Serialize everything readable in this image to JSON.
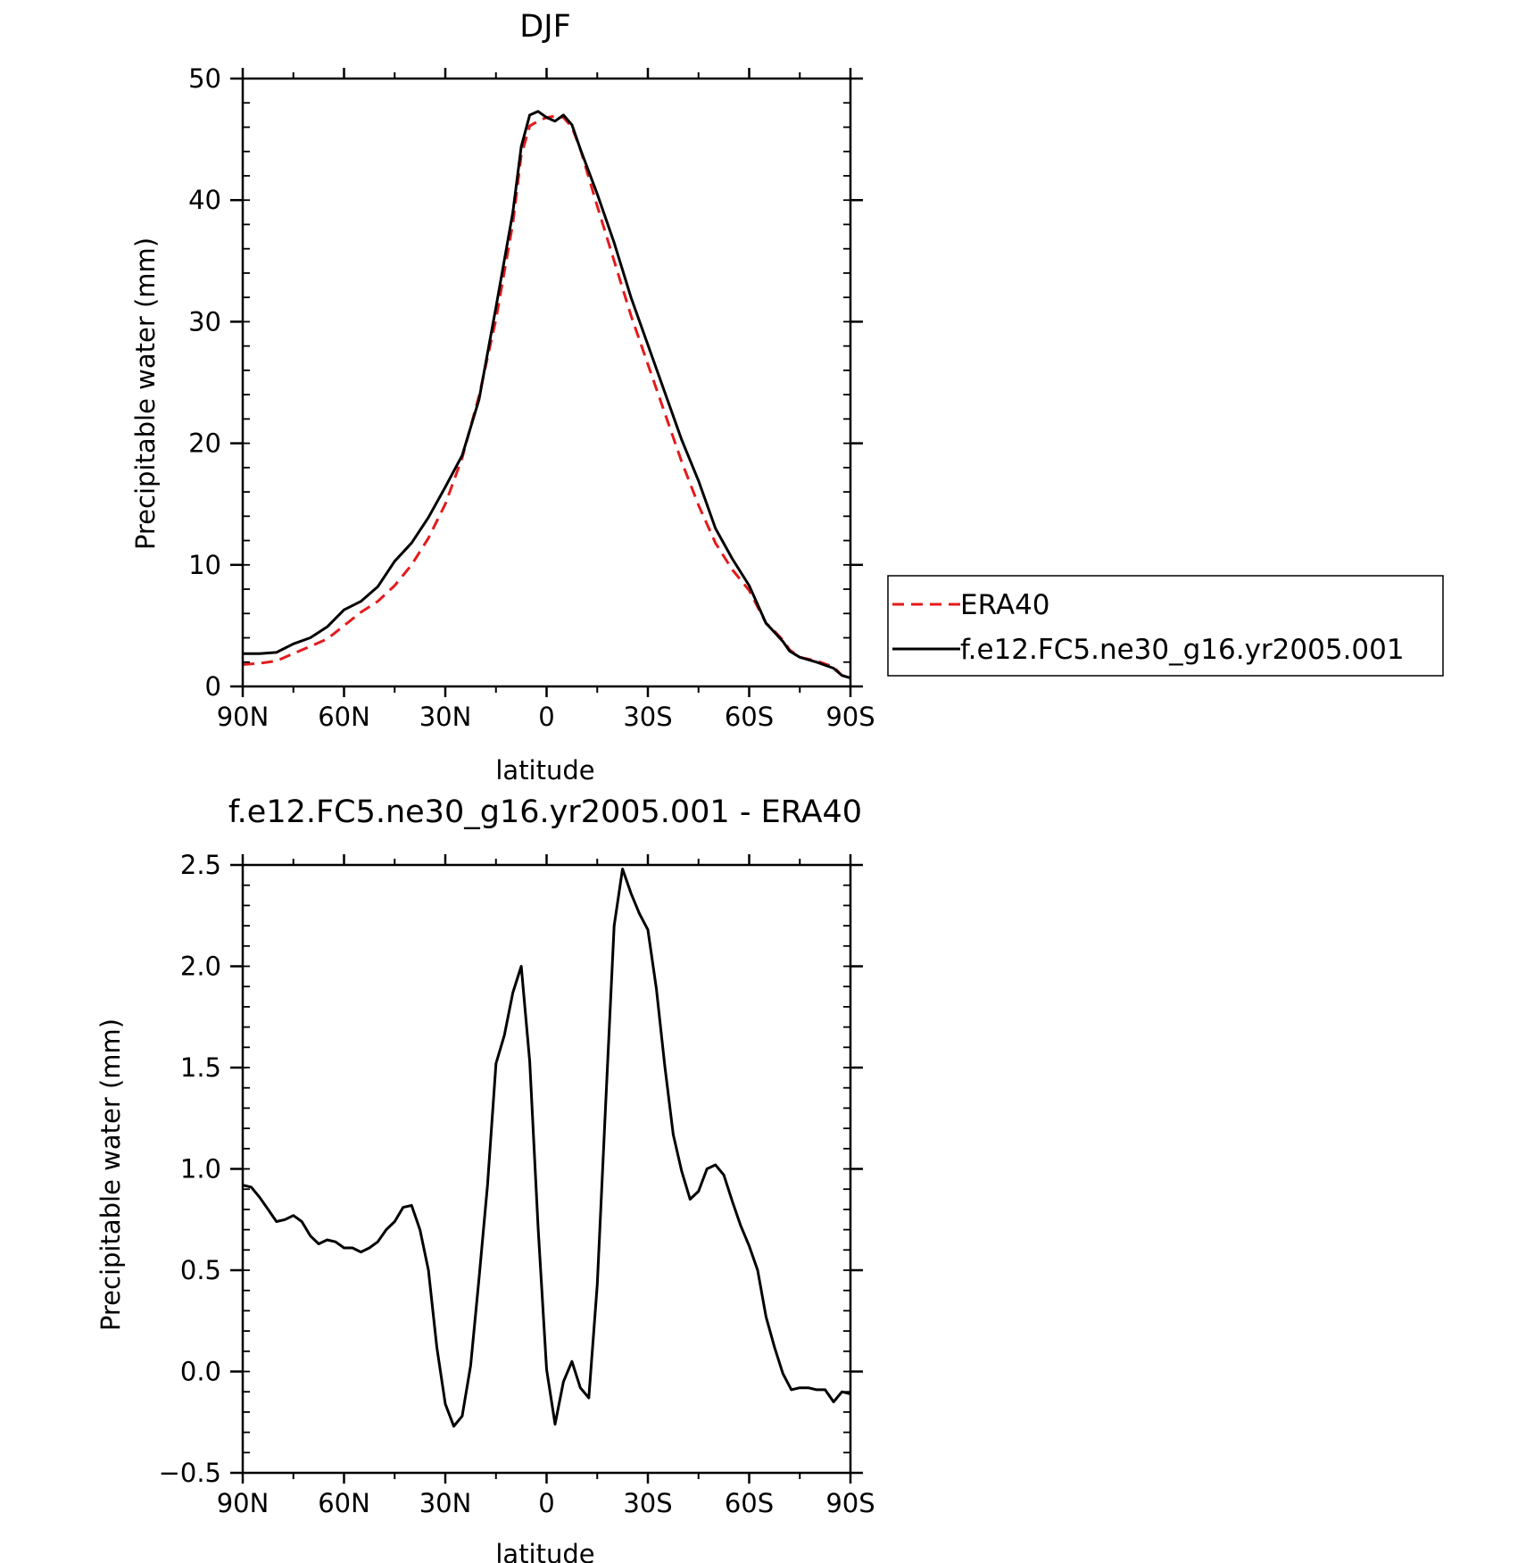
{
  "chart_data": [
    {
      "type": "line",
      "title": "DJF",
      "xlabel": "latitude",
      "ylabel": "Precipitable water (mm)",
      "xlim": [
        -90,
        90
      ],
      "ylim": [
        0,
        50
      ],
      "x_ticks": [
        -90,
        -60,
        -30,
        0,
        30,
        60,
        90
      ],
      "x_tick_labels": [
        "90N",
        "60N",
        "30N",
        "0",
        "30S",
        "60S",
        "90S"
      ],
      "y_ticks": [
        0,
        10,
        20,
        30,
        40,
        50
      ],
      "y_tick_labels": [
        "0",
        "10",
        "20",
        "30",
        "40",
        "50"
      ],
      "grid": false,
      "legend_position": "right",
      "series": [
        {
          "name": "ERA40",
          "color": "#e41a1c",
          "dash": "dashed",
          "x": [
            -90,
            -85,
            -80,
            -75,
            -70,
            -65,
            -60,
            -55,
            -50,
            -45,
            -40,
            -35,
            -30,
            -25,
            -20,
            -15,
            -10,
            -7.5,
            -5,
            -2.5,
            0,
            2.5,
            5,
            7.5,
            10,
            15,
            20,
            25,
            30,
            35,
            40,
            45,
            50,
            55,
            60,
            65,
            67,
            70,
            72,
            75,
            80,
            85,
            87.5,
            90
          ],
          "y": [
            1.8,
            1.9,
            2.1,
            2.7,
            3.3,
            3.9,
            5.0,
            6.1,
            7.0,
            8.3,
            10.0,
            12.2,
            15.0,
            18.8,
            23.9,
            30.2,
            38.1,
            43.7,
            46.1,
            46.5,
            46.8,
            46.9,
            46.8,
            46.0,
            44.2,
            39.5,
            35.0,
            30.5,
            26.5,
            22.5,
            18.5,
            14.9,
            11.8,
            9.6,
            7.9,
            5.2,
            4.7,
            3.8,
            3.0,
            2.4,
            2.1,
            1.6,
            0.9,
            0.7
          ]
        },
        {
          "name": "f.e12.FC5.ne30_g16.yr2005.001",
          "color": "#000000",
          "dash": "solid",
          "x": [
            -90,
            -85,
            -80,
            -75,
            -70,
            -65,
            -60,
            -55,
            -50,
            -45,
            -40,
            -35,
            -30,
            -25,
            -20,
            -15,
            -10,
            -7.5,
            -5,
            -2.5,
            0,
            2.5,
            5,
            7.5,
            10,
            15,
            20,
            25,
            30,
            35,
            40,
            45,
            50,
            55,
            60,
            65,
            67,
            70,
            72,
            75,
            80,
            85,
            87.5,
            90
          ],
          "y": [
            2.7,
            2.7,
            2.8,
            3.5,
            4.0,
            4.9,
            6.3,
            7.0,
            8.2,
            10.3,
            11.8,
            13.9,
            16.4,
            19.0,
            23.6,
            31.2,
            39.0,
            44.4,
            47.0,
            47.3,
            46.8,
            46.5,
            47.0,
            46.2,
            44.2,
            40.5,
            36.5,
            32.0,
            28.1,
            24.2,
            20.3,
            16.9,
            13.0,
            10.5,
            8.3,
            5.2,
            4.6,
            3.7,
            2.9,
            2.4,
            2.0,
            1.5,
            0.9,
            0.7
          ]
        }
      ]
    },
    {
      "type": "line",
      "title": "f.e12.FC5.ne30_g16.yr2005.001 - ERA40",
      "xlabel": "latitude",
      "ylabel": "Precipitable water (mm)",
      "xlim": [
        -90,
        90
      ],
      "ylim": [
        -0.5,
        2.5
      ],
      "x_ticks": [
        -90,
        -60,
        -30,
        0,
        30,
        60,
        90
      ],
      "x_tick_labels": [
        "90N",
        "60N",
        "30N",
        "0",
        "30S",
        "60S",
        "90S"
      ],
      "y_ticks": [
        -0.5,
        0,
        0.5,
        1,
        1.5,
        2,
        2.5
      ],
      "y_tick_labels": [
        "−0.5",
        "0.0",
        "0.5",
        "1.0",
        "1.5",
        "2.0",
        "2.5"
      ],
      "grid": false,
      "series": [
        {
          "color": "#000000",
          "dash": "solid",
          "x": [
            -90,
            -87.5,
            -85,
            -82.5,
            -80,
            -77.5,
            -75,
            -72.5,
            -70,
            -67.5,
            -65,
            -62.5,
            -60,
            -57.5,
            -55,
            -52.5,
            -50,
            -47.5,
            -45,
            -42.5,
            -40,
            -37.5,
            -35,
            -32.5,
            -30,
            -27.5,
            -25,
            -22.5,
            -20,
            -17.5,
            -15,
            -12.5,
            -10,
            -7.5,
            -5,
            -2.5,
            0,
            2.5,
            5,
            7.5,
            10,
            12.5,
            15,
            17.5,
            20,
            22.5,
            25,
            27.5,
            30,
            32.5,
            35,
            37.5,
            40,
            42.5,
            45,
            47.5,
            50,
            52.5,
            55,
            57.5,
            60,
            62.5,
            65,
            67.5,
            70,
            72.5,
            75,
            77.5,
            80,
            82.5,
            85,
            87.5,
            90
          ],
          "y": [
            0.92,
            0.91,
            0.86,
            0.8,
            0.74,
            0.75,
            0.77,
            0.74,
            0.67,
            0.63,
            0.65,
            0.64,
            0.61,
            0.61,
            0.59,
            0.61,
            0.64,
            0.7,
            0.74,
            0.81,
            0.82,
            0.7,
            0.5,
            0.12,
            -0.16,
            -0.27,
            -0.22,
            0.03,
            0.46,
            0.92,
            1.52,
            1.66,
            1.87,
            2.0,
            1.53,
            0.71,
            0.01,
            -0.26,
            -0.05,
            0.05,
            -0.08,
            -0.13,
            0.43,
            1.32,
            2.2,
            2.48,
            2.36,
            2.26,
            2.18,
            1.89,
            1.51,
            1.17,
            0.99,
            0.85,
            0.89,
            1.0,
            1.02,
            0.97,
            0.84,
            0.72,
            0.62,
            0.5,
            0.27,
            0.12,
            -0.01,
            -0.09,
            -0.08,
            -0.08,
            -0.09,
            -0.09,
            -0.15,
            -0.1,
            -0.11
          ]
        }
      ]
    }
  ]
}
